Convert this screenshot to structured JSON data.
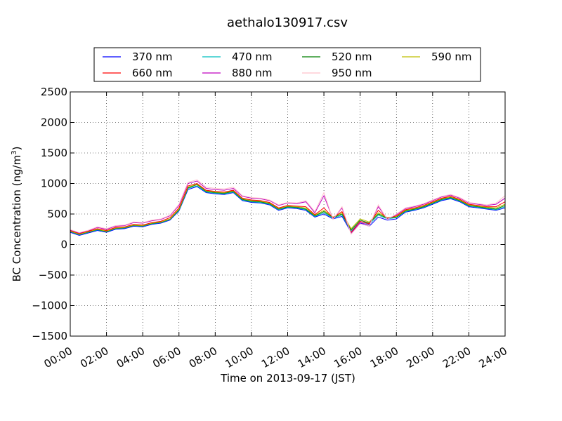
{
  "chart_data": {
    "type": "line",
    "title": "aethalo130917.csv",
    "xlabel": "Time on 2013-09-17 (JST)",
    "ylabel": "BC Concentration (ng/m³)",
    "ylabel_main": "BC Concentration (ng/m",
    "ylabel_sup": "3",
    "ylabel_end": ")",
    "xlim": [
      "00:00",
      "24:00"
    ],
    "ylim": [
      -1500,
      2500
    ],
    "x_ticks": [
      "00:00",
      "02:00",
      "04:00",
      "06:00",
      "08:00",
      "10:00",
      "12:00",
      "14:00",
      "16:00",
      "18:00",
      "20:00",
      "22:00",
      "24:00"
    ],
    "y_ticks": [
      -1500,
      -1000,
      -500,
      0,
      500,
      1000,
      1500,
      2000,
      2500
    ],
    "grid": true,
    "legend_placement": "top-center, above plot",
    "x": [
      "00:00",
      "00:30",
      "01:00",
      "01:30",
      "02:00",
      "02:30",
      "03:00",
      "03:30",
      "04:00",
      "04:30",
      "05:00",
      "05:30",
      "06:00",
      "06:30",
      "07:00",
      "07:30",
      "08:00",
      "08:30",
      "09:00",
      "09:30",
      "10:00",
      "10:30",
      "11:00",
      "11:30",
      "12:00",
      "12:30",
      "13:00",
      "13:30",
      "14:00",
      "14:30",
      "15:00",
      "15:30",
      "16:00",
      "16:30",
      "17:00",
      "17:30",
      "18:00",
      "18:30",
      "19:00",
      "19:30",
      "20:00",
      "20:30",
      "21:00",
      "21:30",
      "22:00",
      "22:30",
      "23:00",
      "23:30",
      "24:00"
    ],
    "series": [
      {
        "name": "370 nm",
        "color": "#0000ff",
        "values": [
          200,
          150,
          190,
          230,
          200,
          250,
          260,
          300,
          290,
          330,
          350,
          400,
          550,
          900,
          950,
          850,
          830,
          820,
          850,
          720,
          690,
          680,
          650,
          560,
          600,
          590,
          560,
          450,
          500,
          420,
          460,
          200,
          350,
          300,
          450,
          400,
          420,
          530,
          560,
          600,
          660,
          720,
          750,
          700,
          620,
          600,
          580,
          560,
          600
        ]
      },
      {
        "name": "470 nm",
        "color": "#00bfbf",
        "values": [
          210,
          160,
          200,
          240,
          210,
          260,
          270,
          310,
          300,
          340,
          360,
          410,
          560,
          920,
          960,
          860,
          840,
          830,
          860,
          730,
          700,
          690,
          660,
          570,
          610,
          600,
          570,
          460,
          520,
          430,
          480,
          220,
          380,
          330,
          480,
          420,
          440,
          540,
          570,
          610,
          670,
          730,
          760,
          710,
          630,
          610,
          590,
          570,
          620
        ]
      },
      {
        "name": "520 nm",
        "color": "#007f00",
        "values": [
          215,
          165,
          205,
          245,
          215,
          265,
          275,
          315,
          305,
          345,
          365,
          415,
          570,
          930,
          980,
          870,
          850,
          840,
          870,
          740,
          710,
          700,
          670,
          580,
          620,
          610,
          580,
          470,
          540,
          440,
          500,
          240,
          400,
          350,
          500,
          430,
          450,
          550,
          580,
          620,
          680,
          740,
          770,
          720,
          640,
          620,
          600,
          580,
          640
        ]
      },
      {
        "name": "590 nm",
        "color": "#bfbf00",
        "values": [
          220,
          170,
          210,
          250,
          220,
          270,
          280,
          320,
          310,
          350,
          370,
          420,
          580,
          940,
          990,
          880,
          860,
          850,
          880,
          750,
          720,
          710,
          680,
          590,
          630,
          620,
          600,
          480,
          560,
          450,
          520,
          260,
          420,
          370,
          520,
          440,
          460,
          560,
          590,
          630,
          690,
          750,
          780,
          730,
          650,
          630,
          610,
          600,
          660
        ]
      },
      {
        "name": "660 nm",
        "color": "#ff0000",
        "values": [
          230,
          180,
          220,
          260,
          230,
          280,
          290,
          330,
          320,
          360,
          380,
          440,
          600,
          960,
          1000,
          890,
          870,
          860,
          890,
          760,
          730,
          720,
          690,
          600,
          640,
          630,
          620,
          490,
          600,
          440,
          540,
          200,
          380,
          340,
          560,
          430,
          470,
          570,
          600,
          640,
          700,
          760,
          790,
          740,
          660,
          640,
          620,
          620,
          700
        ]
      },
      {
        "name": "880 nm",
        "color": "#bf00bf",
        "values": [
          240,
          190,
          230,
          280,
          250,
          300,
          310,
          360,
          350,
          390,
          410,
          470,
          640,
          1000,
          1040,
          920,
          900,
          890,
          920,
          790,
          760,
          750,
          720,
          640,
          680,
          670,
          700,
          520,
          800,
          420,
          600,
          180,
          360,
          320,
          620,
          420,
          490,
          590,
          620,
          660,
          720,
          780,
          810,
          760,
          680,
          660,
          640,
          660,
          760
        ]
      },
      {
        "name": "950 nm",
        "color": "#ffc0cb",
        "values": [
          245,
          195,
          235,
          290,
          260,
          310,
          320,
          370,
          360,
          400,
          420,
          480,
          660,
          1020,
          1060,
          940,
          920,
          910,
          940,
          800,
          770,
          760,
          730,
          650,
          690,
          680,
          720,
          540,
          850,
          410,
          620,
          170,
          340,
          300,
          650,
          410,
          500,
          600,
          630,
          670,
          730,
          790,
          820,
          770,
          690,
          670,
          650,
          680,
          800
        ]
      }
    ]
  }
}
